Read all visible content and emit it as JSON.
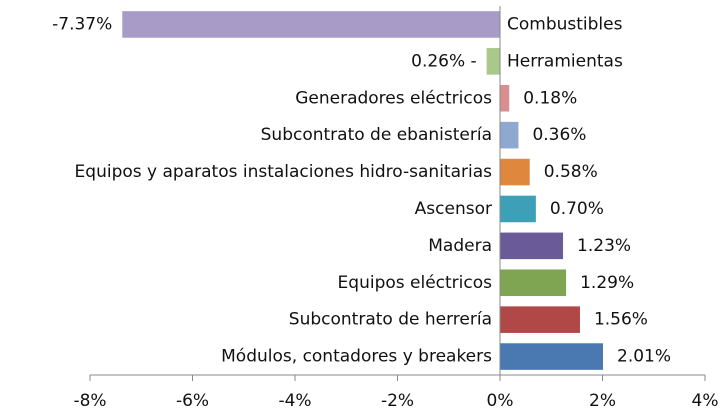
{
  "chart_data": {
    "type": "hbar",
    "categories": [
      "Combustibles",
      "Herramientas",
      "Generadores eléctricos",
      "Subcontrato de ebanistería",
      "Equipos y aparatos instalaciones hidro-sanitarias",
      "Ascensor",
      "Madera",
      "Equipos eléctricos",
      "Subcontrato de herrería",
      "Módulos, contadores y breakers"
    ],
    "values": [
      -7.37,
      -0.26,
      0.18,
      0.36,
      0.58,
      0.7,
      1.23,
      1.29,
      1.56,
      2.01
    ],
    "value_labels": [
      "-7.37%",
      "0.26% -",
      "0.18%",
      "0.36%",
      "0.58%",
      "0.70%",
      "1.23%",
      "1.29%",
      "1.56%",
      "2.01%"
    ],
    "colors": [
      "#a99bc8",
      "#a8c98a",
      "#d98f8f",
      "#8fa8d0",
      "#e0873e",
      "#3ea0b7",
      "#6a5a98",
      "#7fa552",
      "#b14848",
      "#4a78b0"
    ],
    "xlim": [
      -8,
      4
    ],
    "xticks": [
      {
        "value": -8,
        "label": "-8%"
      },
      {
        "value": -6,
        "label": "-6%"
      },
      {
        "value": -4,
        "label": "-4%"
      },
      {
        "value": -2,
        "label": "-2%"
      },
      {
        "value": 0,
        "label": "0%"
      },
      {
        "value": 2,
        "label": "2%"
      },
      {
        "value": 4,
        "label": "4%"
      }
    ]
  }
}
